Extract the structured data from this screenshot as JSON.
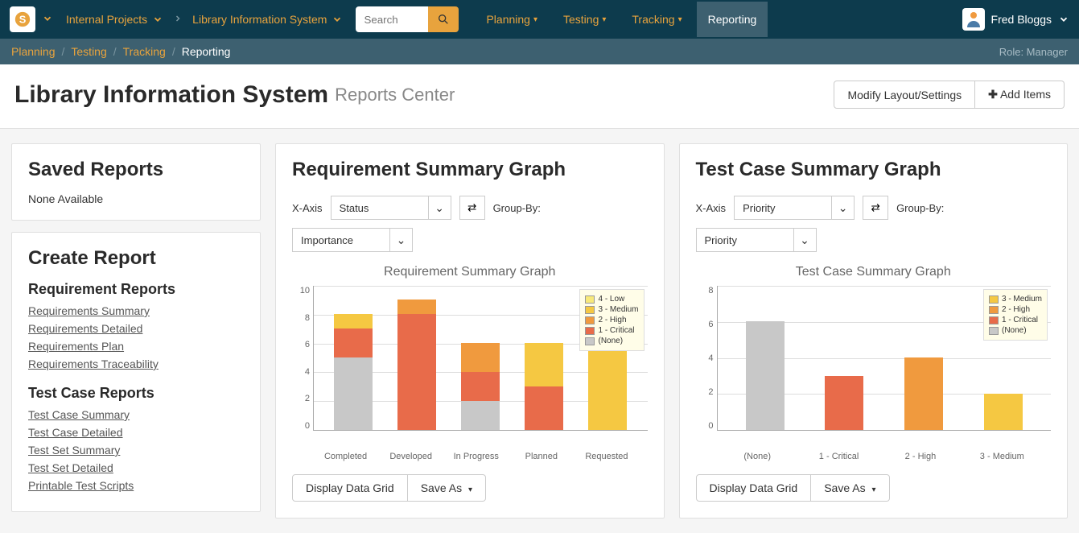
{
  "topnav": {
    "workspace": "Internal Projects",
    "project": "Library Information System",
    "search_placeholder": "Search",
    "menu": [
      "Planning",
      "Testing",
      "Tracking",
      "Reporting"
    ],
    "active_menu": "Reporting",
    "user": "Fred Bloggs"
  },
  "breadcrumb": {
    "items": [
      "Planning",
      "Testing",
      "Tracking"
    ],
    "current": "Reporting",
    "role": "Role: Manager"
  },
  "header": {
    "title": "Library Information System",
    "subtitle": "Reports Center",
    "modify_btn": "Modify Layout/Settings",
    "add_btn": "Add Items"
  },
  "saved_reports": {
    "title": "Saved Reports",
    "empty": "None Available"
  },
  "create_report": {
    "title": "Create Report",
    "sections": [
      {
        "heading": "Requirement Reports",
        "links": [
          "Requirements Summary",
          "Requirements Detailed",
          "Requirements Plan",
          "Requirements Traceability"
        ]
      },
      {
        "heading": "Test Case Reports",
        "links": [
          "Test Case Summary",
          "Test Case Detailed",
          "Test Set Summary",
          "Test Set Detailed",
          "Printable Test Scripts"
        ]
      }
    ]
  },
  "chart1": {
    "panel_title": "Requirement Summary Graph",
    "xaxis_label": "X-Axis",
    "xaxis_value": "Status",
    "groupby_label": "Group-By:",
    "groupby_value": "Importance",
    "chart_title": "Requirement Summary Graph",
    "ymax": 10,
    "ytick": 2,
    "categories": [
      "Completed",
      "Developed",
      "In Progress",
      "Planned",
      "Requested"
    ],
    "legend": [
      {
        "label": "4 - Low",
        "color": "#f8e97a"
      },
      {
        "label": "3 - Medium",
        "color": "#f5c842"
      },
      {
        "label": "2 - High",
        "color": "#f09a3e"
      },
      {
        "label": "1 - Critical",
        "color": "#e86b4a"
      },
      {
        "label": "(None)",
        "color": "#c8c8c8"
      }
    ],
    "stacks": [
      [
        {
          "c": "#c8c8c8",
          "v": 5
        },
        {
          "c": "#e86b4a",
          "v": 2
        },
        {
          "c": "#f5c842",
          "v": 1
        }
      ],
      [
        {
          "c": "#e86b4a",
          "v": 8
        },
        {
          "c": "#f09a3e",
          "v": 1
        }
      ],
      [
        {
          "c": "#c8c8c8",
          "v": 2
        },
        {
          "c": "#e86b4a",
          "v": 2
        },
        {
          "c": "#f09a3e",
          "v": 2
        }
      ],
      [
        {
          "c": "#e86b4a",
          "v": 3
        },
        {
          "c": "#f5c842",
          "v": 3
        }
      ],
      [
        {
          "c": "#f5c842",
          "v": 6
        }
      ]
    ],
    "display_grid_btn": "Display Data Grid",
    "save_as_btn": "Save As"
  },
  "chart2": {
    "panel_title": "Test Case Summary Graph",
    "xaxis_label": "X-Axis",
    "xaxis_value": "Priority",
    "groupby_label": "Group-By:",
    "groupby_value": "Priority",
    "chart_title": "Test Case Summary Graph",
    "ymax": 8,
    "ytick": 2,
    "categories": [
      "(None)",
      "1 - Critical",
      "2 - High",
      "3 - Medium"
    ],
    "legend": [
      {
        "label": "3 - Medium",
        "color": "#f5c842"
      },
      {
        "label": "2 - High",
        "color": "#f09a3e"
      },
      {
        "label": "1 - Critical",
        "color": "#e86b4a"
      },
      {
        "label": "(None)",
        "color": "#c8c8c8"
      }
    ],
    "stacks": [
      [
        {
          "c": "#c8c8c8",
          "v": 6
        }
      ],
      [
        {
          "c": "#e86b4a",
          "v": 3
        }
      ],
      [
        {
          "c": "#f09a3e",
          "v": 4
        }
      ],
      [
        {
          "c": "#f5c842",
          "v": 2
        }
      ]
    ],
    "display_grid_btn": "Display Data Grid",
    "save_as_btn": "Save As"
  },
  "colors": {
    "nav_bg": "#0d3b4d",
    "accent": "#e8a33d",
    "sub_bg": "#3d6070"
  }
}
